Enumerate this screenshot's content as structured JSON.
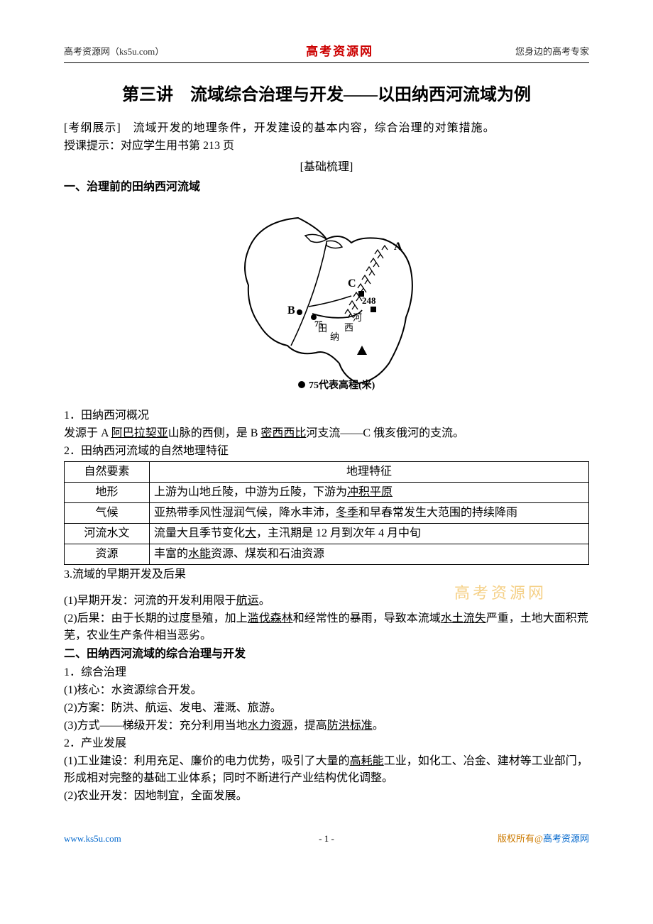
{
  "header": {
    "left_site": "高考资源网",
    "left_url": "（ks5u.com）",
    "center": "高考资源网",
    "right": "您身边的高考专家"
  },
  "title": "第三讲　流域综合治理与开发——以田纳西河流域为例",
  "kaogang_label": "[考纲展示]",
  "kaogang_text": "　流域开发的地理条件，开发建设的基本内容，综合治理的对策措施。",
  "tip": "授课提示：对应学生用书第 213 页",
  "basics_label": "[基础梳理]",
  "sec1": "一、治理前的田纳西河流域",
  "map": {
    "labels": {
      "A": "A",
      "B": "B",
      "C": "C",
      "elev": "248",
      "tian": "田",
      "na": "纳",
      "xi": "西",
      "he": "河"
    },
    "legend_dot": "●",
    "legend_text": "75代表高程(米)",
    "point_label": "75"
  },
  "p1_head": "1．田纳西河概况",
  "p1_parts": {
    "a": "发源于 A ",
    "a_u": "阿巴拉契亚",
    "b": "山脉的西侧，是 B ",
    "b_u": "密西西比",
    "c": "河支流——C 俄亥俄河的支流。"
  },
  "p2_head": "2．田纳西河流域的自然地理特征",
  "table": {
    "headers": [
      "自然要素",
      "地理特征"
    ],
    "rows": [
      {
        "k": "地形",
        "parts": [
          "上游为山地丘陵，中游为丘陵，下游为",
          {
            "u": "冲积平原"
          }
        ]
      },
      {
        "k": "气候",
        "parts": [
          "亚热带季风性湿润气候，降水丰沛，",
          {
            "u": "冬季"
          },
          "和早春常发生大范围的持续降雨"
        ]
      },
      {
        "k": "河流水文",
        "parts": [
          "流量大且季节变化",
          {
            "u": "大"
          },
          "，主汛期是 12 月到次年 4 月中旬"
        ]
      },
      {
        "k": "资源",
        "parts": [
          "丰富的",
          {
            "u": "水能"
          },
          "资源、煤炭和石油资源"
        ]
      }
    ]
  },
  "p3_head": "3.流域的早期开发及后果",
  "watermark": "高考资源网",
  "p3_1": {
    "pre": "(1)早期开发：河流的开发利用限于",
    "u": "航运",
    "post": "。"
  },
  "p3_2": {
    "a": "(2)后果：由于长期的过度垦殖，加上",
    "u1": "滥伐森林",
    "b": "和经常性的暴雨，导致本流域",
    "u2": "水土流失",
    "c": "严重，土地大面积荒芜，农业生产条件相当恶劣。"
  },
  "sec2": "二、田纳西河流域的综合治理与开发",
  "q1_head": "1．综合治理",
  "q1_1": "(1)核心：水资源综合开发。",
  "q1_2": "(2)方案：防洪、航运、发电、灌溉、旅游。",
  "q1_3": {
    "a": "(3)方式——梯级开发：充分利用当地",
    "u1": "水力资源",
    "b": "，提高",
    "u2": "防洪标准",
    "c": "。"
  },
  "q2_head": "2．产业发展",
  "q2_1": {
    "a": "(1)工业建设：利用充足、廉价的电力优势，吸引了大量的",
    "u": "高耗能",
    "b": "工业，如化工、冶金、建材等工业部门，形成相对完整的基础工业体系；同时不断进行产业结构优化调整。"
  },
  "q2_2": "(2)农业开发：因地制宜，全面发展。",
  "footer": {
    "url": "www.ks5u.com",
    "page": "- 1 -",
    "copy_pre": "版权所有@",
    "copy_site": "高考资源网"
  }
}
